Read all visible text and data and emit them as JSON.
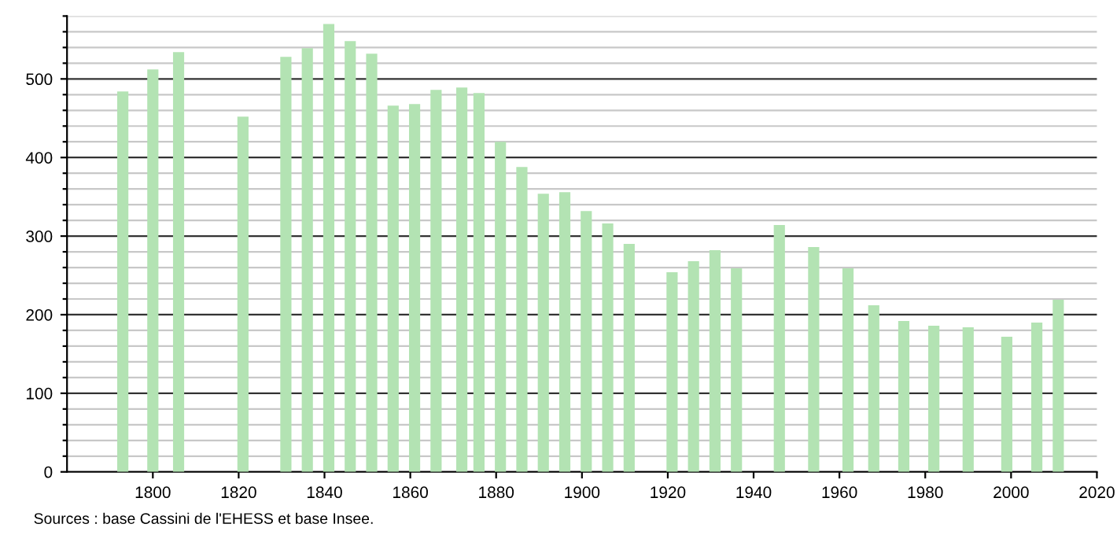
{
  "chart_data": {
    "type": "bar",
    "color": "#b3e3b3",
    "x": [
      1793,
      1800,
      1806,
      1821,
      1831,
      1836,
      1841,
      1846,
      1851,
      1856,
      1861,
      1866,
      1872,
      1876,
      1881,
      1886,
      1891,
      1896,
      1901,
      1906,
      1911,
      1921,
      1926,
      1931,
      1936,
      1946,
      1954,
      1962,
      1968,
      1975,
      1982,
      1990,
      1999,
      2006,
      2011
    ],
    "values": [
      484,
      512,
      534,
      452,
      528,
      539,
      570,
      548,
      532,
      466,
      468,
      486,
      489,
      482,
      420,
      388,
      354,
      356,
      332,
      316,
      290,
      254,
      268,
      282,
      259,
      314,
      286,
      259,
      212,
      192,
      186,
      184,
      172,
      190,
      219
    ],
    "xlim": [
      1780,
      2020
    ],
    "xticks": [
      1800,
      1820,
      1840,
      1860,
      1880,
      1900,
      1920,
      1940,
      1960,
      1980,
      2000,
      2020
    ],
    "ylim": [
      0,
      580
    ],
    "yticks": [
      0,
      {
        "value": 20,
        "label": null
      },
      {
        "value": 40,
        "label": null
      },
      {
        "value": 60,
        "label": null
      },
      {
        "value": 80,
        "label": null
      },
      100,
      {
        "value": 120,
        "label": null
      },
      {
        "value": 140,
        "label": null
      },
      {
        "value": 160,
        "label": null
      },
      {
        "value": 180,
        "label": null
      },
      200,
      {
        "value": 220,
        "label": null
      },
      {
        "value": 240,
        "label": null
      },
      {
        "value": 260,
        "label": null
      },
      {
        "value": 280,
        "label": null
      },
      300,
      {
        "value": 320,
        "label": null
      },
      {
        "value": 340,
        "label": null
      },
      {
        "value": 360,
        "label": null
      },
      {
        "value": 380,
        "label": null
      },
      400,
      {
        "value": 420,
        "label": null
      },
      {
        "value": 440,
        "label": null
      },
      {
        "value": 460,
        "label": null
      },
      {
        "value": 480,
        "label": null
      },
      500,
      {
        "value": 520,
        "label": null
      },
      {
        "value": 540,
        "label": null
      },
      {
        "value": 560,
        "label": null
      },
      {
        "value": 580,
        "label": null
      }
    ],
    "grid": "y",
    "annotations": [
      "Sources : base Cassini de l'EHESS et base Insee."
    ]
  }
}
